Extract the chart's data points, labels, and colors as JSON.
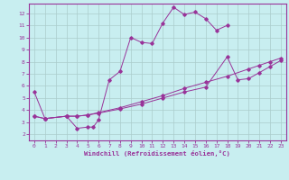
{
  "xlabel": "Windchill (Refroidissement éolien,°C)",
  "background_color": "#c8eef0",
  "line_color": "#993399",
  "grid_color": "#aacccc",
  "xlim": [
    -0.5,
    23.5
  ],
  "ylim": [
    1.5,
    12.8
  ],
  "xticks": [
    0,
    1,
    2,
    3,
    4,
    5,
    6,
    7,
    8,
    9,
    10,
    11,
    12,
    13,
    14,
    15,
    16,
    17,
    18,
    19,
    20,
    21,
    22,
    23
  ],
  "yticks": [
    2,
    3,
    4,
    5,
    6,
    7,
    8,
    9,
    10,
    11,
    12
  ],
  "curve1_x": [
    0,
    1,
    3,
    4,
    5,
    5.5,
    6,
    7,
    8,
    9,
    10,
    11,
    12,
    13,
    14,
    15,
    16,
    17,
    18
  ],
  "curve1_y": [
    5.5,
    3.3,
    3.5,
    2.5,
    2.6,
    2.6,
    3.2,
    6.5,
    7.2,
    10.0,
    9.6,
    9.5,
    11.2,
    12.5,
    11.9,
    12.1,
    11.55,
    10.6,
    11.0
  ],
  "curve2_x": [
    0,
    1,
    3,
    4,
    5,
    6,
    8,
    10,
    12,
    14,
    16,
    18,
    19,
    20,
    21,
    22,
    23
  ],
  "curve2_y": [
    3.5,
    3.3,
    3.5,
    3.5,
    3.6,
    3.75,
    4.1,
    4.5,
    5.0,
    5.5,
    5.9,
    8.4,
    6.5,
    6.6,
    7.1,
    7.6,
    8.1
  ],
  "curve3_x": [
    0,
    1,
    3,
    4,
    5,
    6,
    8,
    10,
    12,
    14,
    16,
    18,
    20,
    21,
    22,
    23
  ],
  "curve3_y": [
    3.5,
    3.3,
    3.5,
    3.5,
    3.6,
    3.8,
    4.2,
    4.7,
    5.2,
    5.8,
    6.3,
    6.8,
    7.4,
    7.7,
    8.0,
    8.3
  ]
}
